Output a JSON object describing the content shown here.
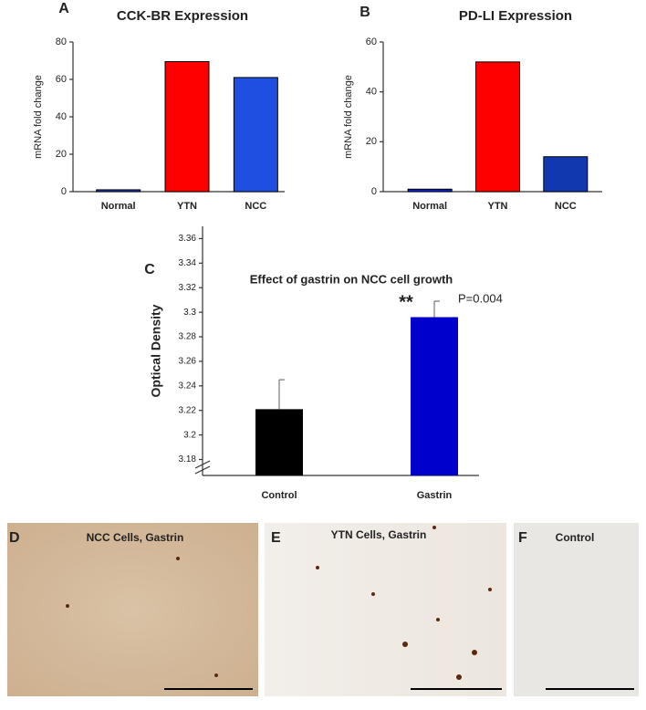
{
  "chart_data": [
    {
      "type": "bar",
      "panel_label": "A",
      "title": "CCK-BR Expression",
      "y_label": "mRNA fold change",
      "categories": [
        "Normal",
        "YTN",
        "NCC"
      ],
      "values": [
        1,
        69.5,
        61
      ],
      "colors": [
        "#1f3fbf",
        "#ff0000",
        "#1f4fe0"
      ],
      "ylim": [
        0,
        80
      ],
      "yticks": [
        0,
        20,
        40,
        60,
        80
      ]
    },
    {
      "type": "bar",
      "panel_label": "B",
      "title": "PD-LI Expression",
      "y_label": "mRNA fold change",
      "categories": [
        "Normal",
        "YTN",
        "NCC"
      ],
      "values": [
        1,
        52,
        14
      ],
      "colors": [
        "#0a1fcc",
        "#ff0000",
        "#1238b0"
      ],
      "ylim": [
        0,
        60
      ],
      "yticks": [
        0,
        20,
        40,
        60
      ]
    },
    {
      "type": "bar",
      "panel_label": "C",
      "title": "Effect of gastrin on NCC cell growth",
      "y_label": "Optical Density",
      "categories": [
        "Control",
        "Gastrin"
      ],
      "values": [
        3.221,
        3.296
      ],
      "errors": [
        0.024,
        0.013
      ],
      "colors": [
        "#000000",
        "#0000cc"
      ],
      "annotations": [
        "**",
        "P=0.004"
      ],
      "ylim": [
        3.167,
        3.37
      ],
      "yticks": [
        3.18,
        3.2,
        3.22,
        3.24,
        3.26,
        3.28,
        3.3,
        3.32,
        3.34,
        3.36
      ]
    }
  ],
  "image_panels": [
    {
      "label": "D",
      "caption": "NCC Cells, Gastrin"
    },
    {
      "label": "E",
      "caption": "YTN Cells, Gastrin"
    },
    {
      "label": "F",
      "caption": "Control"
    }
  ]
}
